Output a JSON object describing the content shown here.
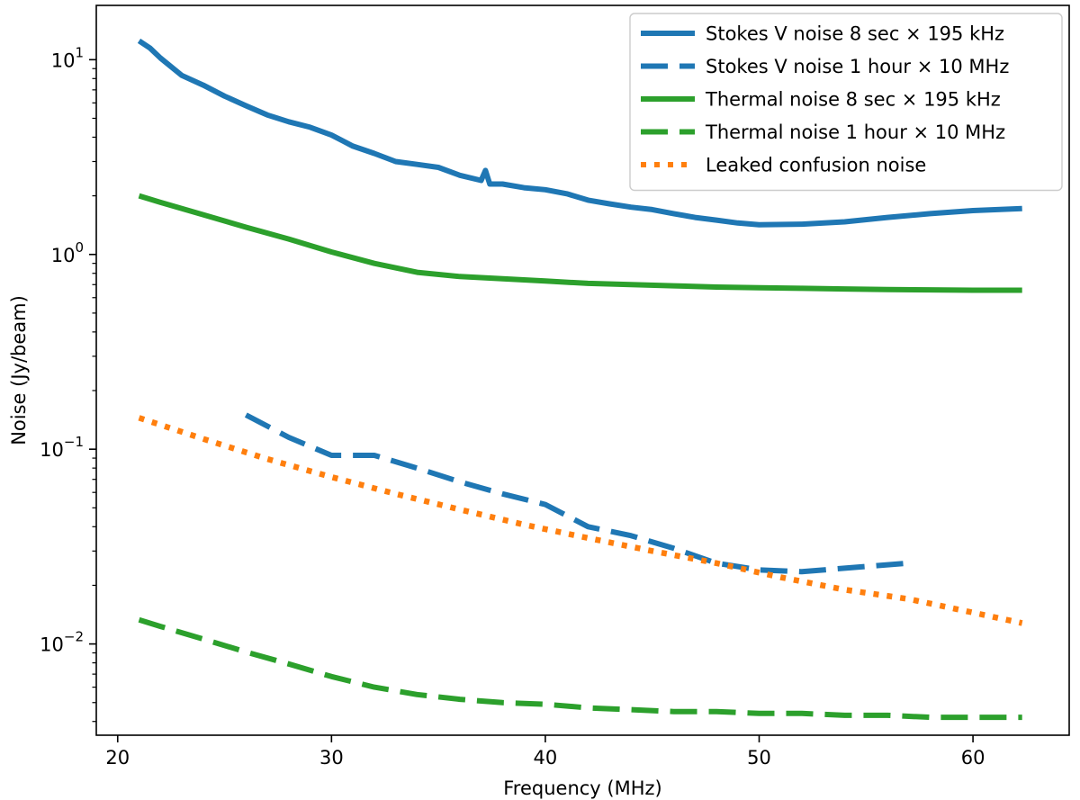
{
  "chart_data": {
    "type": "line",
    "title": "",
    "xlabel": "Frequency (MHz)",
    "ylabel": "Noise (Jy/beam)",
    "xlim": [
      19,
      64.5
    ],
    "ylim": [
      0.0034,
      19
    ],
    "yscale": "log",
    "grid": false,
    "legend_position": "top-right",
    "x_ticks": [
      20,
      30,
      40,
      50,
      60
    ],
    "x_tick_labels": [
      "20",
      "30",
      "40",
      "50",
      "60"
    ],
    "y_ticks": [
      0.01,
      0.1,
      1,
      10
    ],
    "y_tick_labels": [
      {
        "base": "10",
        "exp": "−2"
      },
      {
        "base": "10",
        "exp": "−1"
      },
      {
        "base": "10",
        "exp": "0"
      },
      {
        "base": "10",
        "exp": "1"
      }
    ],
    "series": [
      {
        "name": "Stokes V noise 8 sec × 195 kHz",
        "color": "#1f77b4",
        "style": "solid",
        "x": [
          21,
          21.5,
          22,
          23,
          24,
          25,
          26,
          27,
          28,
          29,
          30,
          31,
          32,
          33,
          34,
          35,
          36,
          37,
          37.2,
          37.4,
          38,
          39,
          40,
          41,
          42,
          43,
          44,
          45,
          46,
          47,
          48,
          49,
          50,
          52,
          54,
          56,
          58,
          60,
          62.3
        ],
        "y": [
          12.5,
          11.5,
          10.2,
          8.3,
          7.4,
          6.5,
          5.8,
          5.2,
          4.8,
          4.5,
          4.1,
          3.6,
          3.3,
          3.0,
          2.9,
          2.8,
          2.55,
          2.4,
          2.7,
          2.3,
          2.3,
          2.2,
          2.15,
          2.05,
          1.9,
          1.82,
          1.75,
          1.7,
          1.62,
          1.55,
          1.5,
          1.45,
          1.42,
          1.43,
          1.47,
          1.55,
          1.62,
          1.68,
          1.72
        ]
      },
      {
        "name": "Stokes V noise 1 hour × 10 MHz",
        "color": "#1f77b4",
        "style": "dashed",
        "x": [
          26,
          28,
          30,
          32,
          34,
          36,
          38,
          40,
          42,
          44,
          46,
          48,
          50,
          52,
          54,
          57
        ],
        "y": [
          0.15,
          0.115,
          0.093,
          0.093,
          0.08,
          0.068,
          0.059,
          0.052,
          0.04,
          0.036,
          0.031,
          0.026,
          0.024,
          0.0235,
          0.0245,
          0.026
        ]
      },
      {
        "name": "Thermal noise 8 sec × 195 kHz",
        "color": "#2ca02c",
        "style": "solid",
        "x": [
          21,
          22,
          24,
          26,
          28,
          30,
          32,
          34,
          36,
          38,
          40,
          42,
          44,
          46,
          48,
          50,
          52,
          54,
          56,
          58,
          60,
          62.3
        ],
        "y": [
          2.0,
          1.85,
          1.6,
          1.38,
          1.2,
          1.03,
          0.9,
          0.81,
          0.77,
          0.75,
          0.73,
          0.71,
          0.7,
          0.69,
          0.68,
          0.675,
          0.67,
          0.665,
          0.66,
          0.658,
          0.655,
          0.655
        ]
      },
      {
        "name": "Thermal noise 1 hour × 10 MHz",
        "color": "#2ca02c",
        "style": "dashed",
        "x": [
          21,
          22,
          24,
          26,
          28,
          30,
          32,
          34,
          36,
          38,
          40,
          42,
          44,
          46,
          48,
          50,
          52,
          54,
          56,
          58,
          60,
          62.3
        ],
        "y": [
          0.0133,
          0.0123,
          0.0106,
          0.0091,
          0.0079,
          0.0068,
          0.006,
          0.0055,
          0.0052,
          0.005,
          0.0049,
          0.0047,
          0.0046,
          0.0045,
          0.0045,
          0.0044,
          0.0044,
          0.0043,
          0.0043,
          0.0042,
          0.0042,
          0.0042
        ]
      },
      {
        "name": "Leaked confusion noise",
        "color": "#ff7f0e",
        "style": "dotted",
        "x": [
          21,
          24,
          27,
          30,
          33,
          36,
          39,
          42,
          45,
          48,
          51,
          54,
          57,
          60,
          62.3
        ],
        "y": [
          0.145,
          0.113,
          0.089,
          0.072,
          0.059,
          0.049,
          0.041,
          0.035,
          0.03,
          0.026,
          0.022,
          0.019,
          0.017,
          0.0145,
          0.0128
        ]
      }
    ]
  }
}
